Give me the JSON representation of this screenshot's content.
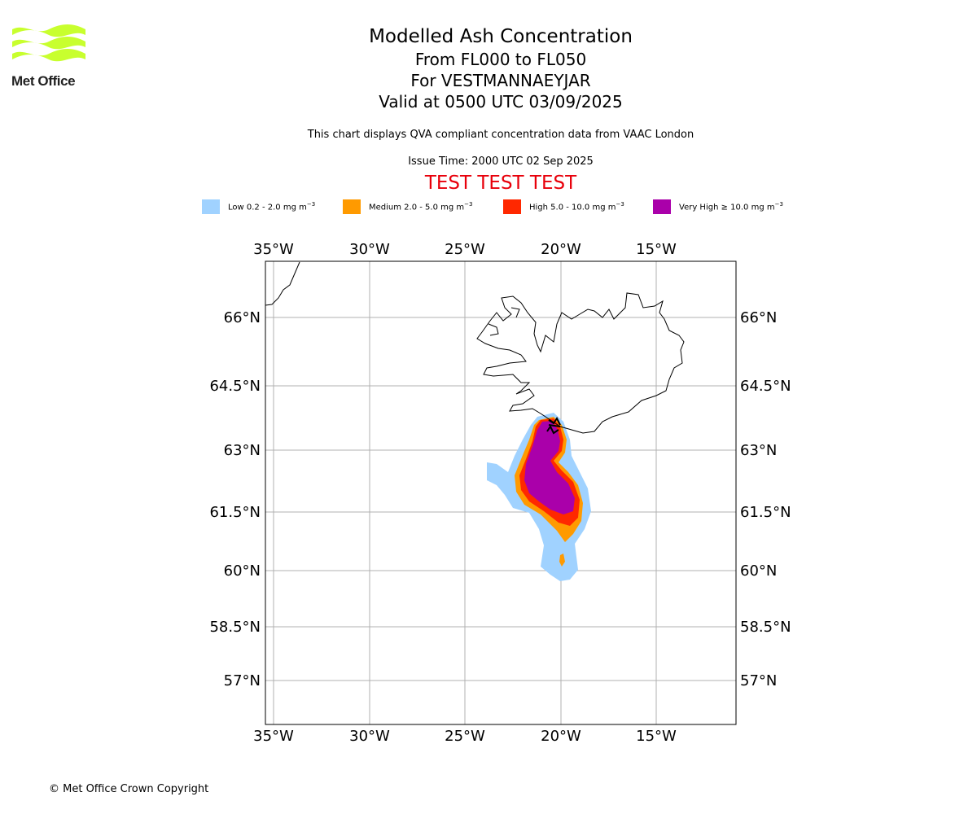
{
  "logo": {
    "name": "Met Office",
    "colors": {
      "waves": "#c8ff2e",
      "text": "#222222"
    }
  },
  "header": {
    "title": "Modelled Ash Concentration",
    "levels": "From FL000 to FL050",
    "volcano": "For VESTMANNAEYJAR",
    "valid": "Valid at 0500 UTC 03/09/2025",
    "description": "This chart displays QVA compliant concentration data from VAAC London",
    "issue_time": "Issue Time: 2000 UTC 02 Sep 2025",
    "test_banner": "TEST TEST TEST"
  },
  "legend": [
    {
      "label": "Low 0.2 - 2.0 mg m",
      "sup": "−3",
      "color": "#a0d2ff"
    },
    {
      "label": "Medium 2.0 - 5.0 mg m",
      "sup": "−3",
      "color": "#ff9a00"
    },
    {
      "label": "High 5.0 - 10.0 mg m",
      "sup": "−3",
      "color": "#ff2800"
    },
    {
      "label": "Very High  ≥  10.0 mg m",
      "sup": "−3",
      "color": "#aa00aa"
    }
  ],
  "map": {
    "longitudes": [
      "35°W",
      "30°W",
      "25°W",
      "20°W",
      "15°W"
    ],
    "latitudes": [
      "66°N",
      "64.5°N",
      "63°N",
      "61.5°N",
      "60°N",
      "58.5°N",
      "57°N"
    ],
    "volcano_marker": "Vestmannaeyjar",
    "colors": {
      "grid": "#b0b0b0",
      "coast": "#000000",
      "frame": "#000000"
    }
  },
  "footer": {
    "copyright": "© Met Office Crown Copyright"
  }
}
